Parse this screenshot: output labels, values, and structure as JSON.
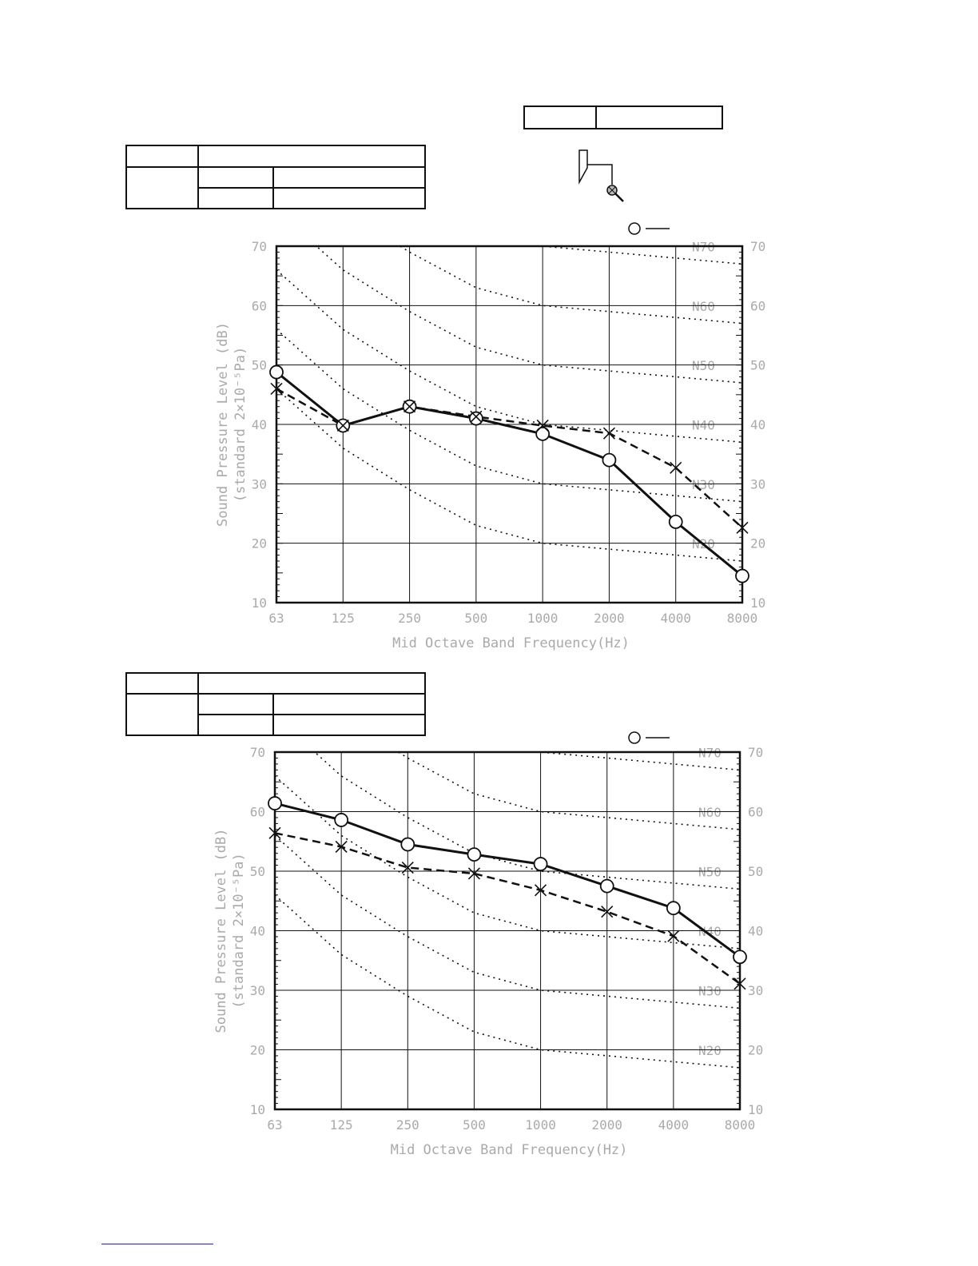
{
  "colors": {
    "ink": "#111111",
    "label": "#aaaaaa",
    "link": "#2222cc"
  },
  "legend_icon": "circle-line",
  "device_icon": "unit-with-microphone-icon",
  "chart_data": [
    {
      "type": "line",
      "x": [
        "63",
        "125",
        "250",
        "500",
        "1000",
        "2000",
        "4000",
        "8000"
      ],
      "xlabel": "Mid Octave Band Frequency(Hz)",
      "ylabel": "Sound Pressure Level (dB)",
      "ylabel2": "(standard 2×10⁻⁵Pa)",
      "ylim": [
        10,
        70
      ],
      "yticks": [
        "10",
        "20",
        "30",
        "40",
        "50",
        "60",
        "70"
      ],
      "grid": true,
      "nc_labels": [
        "N70",
        "N60",
        "N50",
        "N40",
        "N30",
        "N20"
      ],
      "nc_values": [
        70,
        60,
        50,
        40,
        30,
        20
      ],
      "series": [
        {
          "marker": "circle",
          "style": "solid",
          "values": [
            48.8,
            39.8,
            43.0,
            41.0,
            38.4,
            34.0,
            23.6,
            14.5
          ]
        },
        {
          "marker": "cross",
          "style": "dashed",
          "values": [
            46.0,
            39.8,
            43.0,
            41.3,
            39.8,
            38.5,
            32.7,
            22.6
          ]
        }
      ]
    },
    {
      "type": "line",
      "x": [
        "63",
        "125",
        "250",
        "500",
        "1000",
        "2000",
        "4000",
        "8000"
      ],
      "xlabel": "Mid Octave Band Frequency(Hz)",
      "ylabel": "Sound Pressure Level (dB)",
      "ylabel2": "(standard 2×10⁻⁵Pa)",
      "ylim": [
        10,
        70
      ],
      "yticks": [
        "10",
        "20",
        "30",
        "40",
        "50",
        "60",
        "70"
      ],
      "grid": true,
      "nc_labels": [
        "N70",
        "N60",
        "N50",
        "N40",
        "N30",
        "N20"
      ],
      "nc_values": [
        70,
        60,
        50,
        40,
        30,
        20
      ],
      "series": [
        {
          "marker": "circle",
          "style": "solid",
          "values": [
            61.4,
            58.6,
            54.5,
            52.8,
            51.2,
            47.5,
            43.8,
            35.6
          ]
        },
        {
          "marker": "cross",
          "style": "dashed",
          "values": [
            56.4,
            54.1,
            50.6,
            49.6,
            46.8,
            43.2,
            39.1,
            31.1
          ]
        }
      ]
    }
  ]
}
